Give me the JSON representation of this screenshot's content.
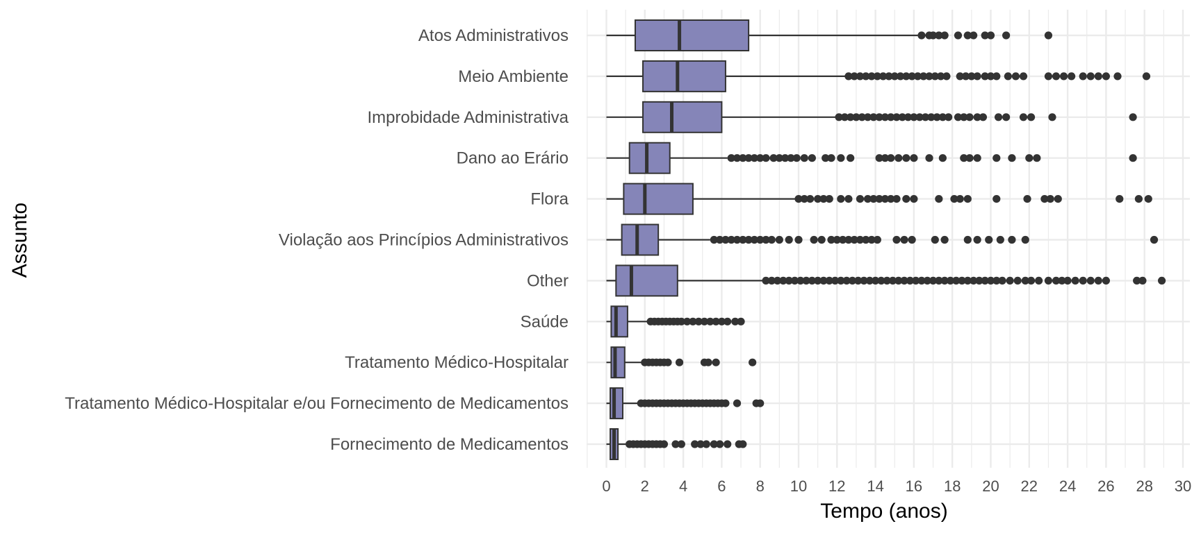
{
  "chart_data": {
    "type": "boxplot",
    "orientation": "horizontal",
    "xlabel": "Tempo (anos)",
    "ylabel": "Assunto",
    "xlim": [
      -1,
      30.5
    ],
    "x_ticks": [
      0,
      2,
      4,
      6,
      8,
      10,
      12,
      14,
      16,
      18,
      20,
      22,
      24,
      26,
      28,
      30
    ],
    "grid": true,
    "colors": {
      "box_fill": "#8585b8",
      "box_stroke": "#333333",
      "points": "#333333",
      "grid": "#ebebeb"
    },
    "categories": [
      {
        "name": "Atos Administrativos",
        "min": 0,
        "q1": 1.5,
        "median": 3.8,
        "q3": 7.4,
        "max": 16.2,
        "outliers": [
          16.4,
          16.8,
          17.0,
          17.3,
          17.6,
          18.3,
          18.8,
          19.1,
          19.7,
          20.0,
          20.8,
          23.0
        ]
      },
      {
        "name": "Meio Ambiente",
        "min": 0,
        "q1": 1.9,
        "median": 3.7,
        "q3": 6.2,
        "max": 12.5,
        "outliers": [
          12.6,
          12.9,
          13.2,
          13.5,
          13.8,
          14.1,
          14.4,
          14.7,
          15.0,
          15.3,
          15.6,
          15.9,
          16.2,
          16.5,
          16.8,
          17.1,
          17.4,
          17.7,
          18.4,
          18.7,
          19.0,
          19.3,
          19.7,
          20.0,
          20.3,
          20.9,
          21.3,
          21.7,
          23.0,
          23.4,
          23.8,
          24.2,
          24.8,
          25.2,
          25.6,
          26.0,
          26.6,
          28.1
        ]
      },
      {
        "name": "Improbidade Administrativa",
        "min": 0,
        "q1": 1.9,
        "median": 3.4,
        "q3": 6.0,
        "max": 12.0,
        "outliers": [
          12.1,
          12.4,
          12.7,
          13.0,
          13.3,
          13.6,
          13.9,
          14.2,
          14.5,
          14.8,
          15.1,
          15.4,
          15.7,
          16.0,
          16.3,
          16.6,
          16.9,
          17.2,
          17.5,
          17.8,
          18.3,
          18.6,
          18.9,
          19.3,
          19.6,
          20.4,
          20.8,
          21.7,
          22.1,
          23.2,
          27.4
        ]
      },
      {
        "name": "Dano ao Erário",
        "min": 0,
        "q1": 1.2,
        "median": 2.1,
        "q3": 3.3,
        "max": 6.3,
        "outliers": [
          6.5,
          6.8,
          7.1,
          7.4,
          7.7,
          8.0,
          8.3,
          8.7,
          9.0,
          9.3,
          9.6,
          9.9,
          10.3,
          10.7,
          11.4,
          11.7,
          12.2,
          12.7,
          14.2,
          14.5,
          14.8,
          15.2,
          15.6,
          16.0,
          16.8,
          17.5,
          18.6,
          18.9,
          19.3,
          20.3,
          21.1,
          22.0,
          22.4,
          27.4
        ]
      },
      {
        "name": "Flora",
        "min": 0,
        "q1": 0.9,
        "median": 2.0,
        "q3": 4.5,
        "max": 9.8,
        "outliers": [
          10.0,
          10.3,
          10.6,
          11.0,
          11.3,
          11.6,
          12.2,
          12.6,
          13.2,
          13.6,
          13.9,
          14.2,
          14.5,
          14.8,
          15.1,
          15.6,
          16.0,
          17.3,
          18.1,
          18.4,
          18.8,
          20.3,
          21.9,
          22.8,
          23.1,
          23.5,
          26.7,
          27.7,
          28.2
        ]
      },
      {
        "name": "Violação aos Princípios Administrativos",
        "min": 0,
        "q1": 0.8,
        "median": 1.6,
        "q3": 2.7,
        "max": 5.4,
        "outliers": [
          5.6,
          5.9,
          6.2,
          6.5,
          6.8,
          7.1,
          7.4,
          7.7,
          8.0,
          8.3,
          8.6,
          9.0,
          9.5,
          10.0,
          10.8,
          11.2,
          11.7,
          12.0,
          12.3,
          12.6,
          12.9,
          13.2,
          13.5,
          13.8,
          14.1,
          15.1,
          15.5,
          15.9,
          17.1,
          17.6,
          18.8,
          19.3,
          19.9,
          20.5,
          21.1,
          21.8,
          28.5
        ]
      },
      {
        "name": "Other",
        "min": 0,
        "q1": 0.5,
        "median": 1.3,
        "q3": 3.7,
        "max": 8.2,
        "outliers": [
          8.3,
          8.6,
          8.9,
          9.2,
          9.5,
          9.8,
          10.1,
          10.4,
          10.7,
          11.0,
          11.3,
          11.6,
          11.9,
          12.2,
          12.5,
          12.8,
          13.1,
          13.4,
          13.7,
          14.0,
          14.3,
          14.6,
          14.9,
          15.2,
          15.5,
          15.8,
          16.1,
          16.4,
          16.7,
          17.0,
          17.3,
          17.6,
          17.9,
          18.2,
          18.5,
          18.8,
          19.1,
          19.4,
          19.7,
          20.0,
          20.3,
          20.6,
          21.0,
          21.4,
          21.8,
          22.1,
          22.5,
          23.0,
          23.4,
          23.7,
          24.0,
          24.4,
          24.8,
          25.2,
          25.6,
          26.0,
          27.6,
          27.9,
          28.9
        ]
      },
      {
        "name": "Saúde",
        "min": 0,
        "q1": 0.25,
        "median": 0.5,
        "q3": 1.1,
        "max": 2.2,
        "outliers": [
          2.3,
          2.5,
          2.7,
          2.9,
          3.1,
          3.3,
          3.5,
          3.7,
          3.9,
          4.2,
          4.5,
          4.8,
          5.1,
          5.4,
          5.7,
          6.0,
          6.3,
          6.7,
          7.0
        ]
      },
      {
        "name": "Tratamento Médico-Hospitalar",
        "min": 0,
        "q1": 0.25,
        "median": 0.45,
        "q3": 0.95,
        "max": 1.9,
        "outliers": [
          2.0,
          2.2,
          2.4,
          2.6,
          2.8,
          3.0,
          3.2,
          3.8,
          5.1,
          5.3,
          5.7,
          7.6
        ]
      },
      {
        "name": "Tratamento Médico-Hospitalar e/ou Fornecimento de Medicamentos",
        "min": 0,
        "q1": 0.2,
        "median": 0.4,
        "q3": 0.85,
        "max": 1.7,
        "outliers": [
          1.8,
          2.0,
          2.2,
          2.4,
          2.6,
          2.8,
          3.0,
          3.2,
          3.4,
          3.6,
          3.8,
          4.0,
          4.2,
          4.4,
          4.6,
          4.8,
          5.0,
          5.2,
          5.4,
          5.6,
          5.8,
          6.0,
          6.2,
          6.8,
          7.8,
          8.0
        ]
      },
      {
        "name": "Fornecimento de Medicamentos",
        "min": 0,
        "q1": 0.2,
        "median": 0.4,
        "q3": 0.6,
        "max": 1.1,
        "outliers": [
          1.2,
          1.4,
          1.6,
          1.8,
          2.0,
          2.2,
          2.4,
          2.6,
          2.8,
          3.0,
          3.6,
          3.9,
          4.6,
          4.9,
          5.2,
          5.6,
          5.9,
          6.3,
          6.9,
          7.1
        ]
      }
    ]
  }
}
